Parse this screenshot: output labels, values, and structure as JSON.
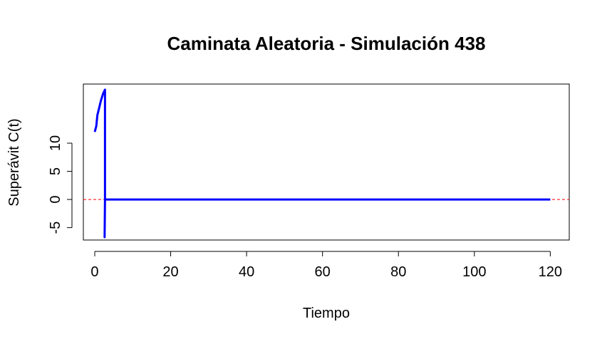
{
  "chart_data": {
    "type": "line",
    "title": "Caminata Aleatoria - Simulación 438",
    "xlabel": "Tiempo",
    "ylabel": "Superávit C(t)",
    "xlim": [
      -3,
      125
    ],
    "ylim": [
      -7.2,
      20.5
    ],
    "x_ticks": [
      0,
      20,
      40,
      60,
      80,
      100,
      120
    ],
    "x_tick_labels": [
      "0",
      "20",
      "40",
      "60",
      "80",
      "100",
      "120"
    ],
    "y_ticks": [
      -5,
      0,
      5,
      10
    ],
    "y_tick_labels": [
      "-5",
      "0",
      "5",
      "10"
    ],
    "grid": false,
    "legend": "none",
    "series": [
      {
        "color": "#0000ff",
        "x": [
          0,
          0.4,
          0.7,
          1.0,
          1.6,
          2.2,
          2.7,
          2.7,
          2.6,
          2.7,
          120
        ],
        "y": [
          12.0,
          13.0,
          15.0,
          15.8,
          17.5,
          18.8,
          19.5,
          0,
          -6.7,
          0,
          0
        ]
      }
    ],
    "reference_lines": [
      {
        "y": 0,
        "color": "#ff0000",
        "style": "dashed"
      }
    ]
  }
}
